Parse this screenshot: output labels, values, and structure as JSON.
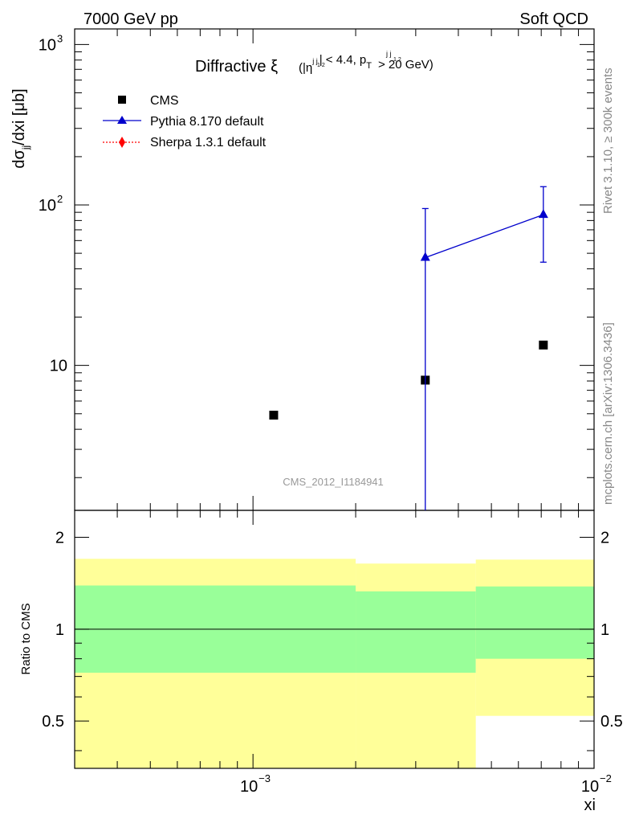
{
  "header": {
    "left": "7000 GeV pp",
    "right": "Soft QCD"
  },
  "side": {
    "rivet": "Rivet 3.1.10, ≥ 300k events",
    "mcplots": "mcplots.cern.ch [arXiv:1306.3436]"
  },
  "watermark": "CMS_2012_I1184941",
  "title": {
    "main": "Diffractive ξ",
    "condition_a": "(|η",
    "condition_sup_a": "j j",
    "condition_sub_a": "1 2",
    "condition_b": "| < 4.4, p",
    "condition_sub_b": "T",
    "condition_sup_b": "j j",
    "condition_sub_b2": "1 2",
    "condition_c": "> 20 GeV)"
  },
  "axes": {
    "ylabel_main": "dσ",
    "ylabel_sub": "jj",
    "ylabel_rest": "/dxi [μb]",
    "ylabel_ratio": "Ratio to CMS",
    "xlabel": "xi",
    "main_ticks": [
      {
        "value": 10,
        "base": "10",
        "exp": ""
      },
      {
        "value": 100,
        "base": "10",
        "exp": "2"
      },
      {
        "value": 1000,
        "base": "10",
        "exp": "3"
      }
    ],
    "ratio_ticks": [
      {
        "value": 0.5,
        "label": "0.5"
      },
      {
        "value": 1,
        "label": "1"
      },
      {
        "value": 2,
        "label": "2"
      }
    ],
    "x_ticks": [
      {
        "value": 0.001,
        "base": "10",
        "exp": "−3"
      },
      {
        "value": 0.01,
        "base": "10",
        "exp": "−2"
      }
    ]
  },
  "chart_data": {
    "type": "scatter",
    "x_scale": "log",
    "y_scale": "log",
    "xlim": [
      0.0003,
      0.01
    ],
    "ylim": [
      1.25,
      1250
    ],
    "ratio_ylim": [
      0.35,
      2.45
    ],
    "legend": "top-left",
    "bins": [
      {
        "low": 0.0003,
        "high": 0.002
      },
      {
        "low": 0.002,
        "high": 0.0045
      },
      {
        "low": 0.0045,
        "high": 0.01
      }
    ],
    "series": [
      {
        "name": "CMS",
        "color": "#000000",
        "marker": "square",
        "x": [
          0.00115,
          0.0032,
          0.0071
        ],
        "y": [
          4.9,
          8.1,
          13.4
        ]
      },
      {
        "name": "Pythia 8.170 default",
        "color": "#0000cc",
        "marker": "triangle",
        "x": [
          0.0032,
          0.0071
        ],
        "y": [
          47,
          87
        ],
        "yerr_low": [
          1.2,
          44
        ],
        "yerr_high": [
          95,
          130
        ]
      },
      {
        "name": "Sherpa 1.3.1 default",
        "color": "#ff0000",
        "marker": "diamond",
        "line": "dotted",
        "x": [],
        "y": []
      }
    ],
    "ratio_bands": {
      "outer_color": "#ffff99",
      "inner_color": "#99ff99",
      "outer": [
        {
          "low": 0.3,
          "high": 1.7
        },
        {
          "low": 0.3,
          "high": 1.64
        },
        {
          "low": 0.52,
          "high": 1.69
        }
      ],
      "inner": [
        {
          "low": 0.72,
          "high": 1.39
        },
        {
          "low": 0.72,
          "high": 1.33
        },
        {
          "low": 0.8,
          "high": 1.38
        }
      ]
    }
  }
}
